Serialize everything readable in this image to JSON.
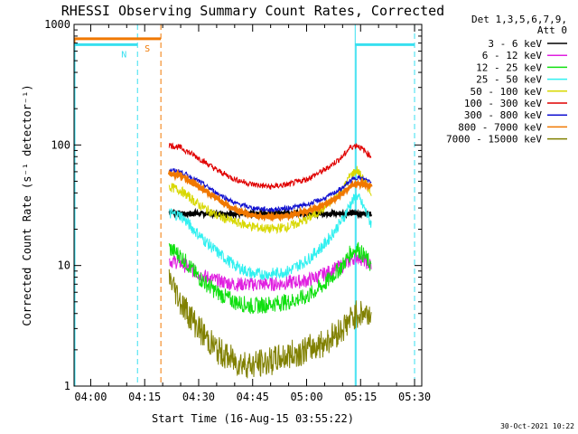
{
  "chart_data": {
    "type": "line",
    "title": "RHESSI Observing Summary Count Rates, Corrected",
    "xlabel": "Start Time (16-Aug-15 03:55:22)",
    "ylabel": "Corrected Count Rate (s⁻¹ detector⁻¹)",
    "yscale": "log",
    "ylim": [
      1,
      1000
    ],
    "xlim_minutes_after_0400": [
      -4.63,
      92
    ],
    "x_ticks": [
      {
        "label": "04:00",
        "t": 0
      },
      {
        "label": "04:15",
        "t": 15
      },
      {
        "label": "04:30",
        "t": 30
      },
      {
        "label": "04:45",
        "t": 45
      },
      {
        "label": "05:00",
        "t": 60
      },
      {
        "label": "05:15",
        "t": 75
      },
      {
        "label": "05:30",
        "t": 90
      }
    ],
    "y_ticks": [
      {
        "label": "1",
        "v": 1
      },
      {
        "label": "10",
        "v": 10
      },
      {
        "label": "100",
        "v": 100
      },
      {
        "label": "1000",
        "v": 1000
      }
    ],
    "legend": {
      "header_line1": "Det 1,3,5,6,7,9,",
      "header_line2": "Att 0",
      "position": "right"
    },
    "markers": [
      {
        "name": "SAA",
        "label": "S",
        "color": "#f07800",
        "t_start": -4.63,
        "t_end": 19.5,
        "level": 760
      },
      {
        "name": "Night",
        "label": "N",
        "color": "#38e0f0",
        "t_start": -4.63,
        "t_end": 13,
        "level": 680
      },
      {
        "name": "Night",
        "label": "",
        "color": "#38e0f0",
        "t_start": 73.5,
        "t_end": 90,
        "level": 680
      }
    ],
    "marker_boundaries": [
      {
        "t": 13,
        "color": "#38e0f0",
        "style": "dashed"
      },
      {
        "t": 19.5,
        "color": "#f07800",
        "style": "dashed"
      },
      {
        "t": 73.5,
        "color": "#38e0f0",
        "style": "solid"
      },
      {
        "t": 90,
        "color": "#38e0f0",
        "style": "dashed"
      }
    ],
    "x_sample_minutes": [
      21.8,
      25,
      30,
      35,
      40,
      45,
      50,
      55,
      60,
      65,
      70,
      72,
      74,
      76,
      78
    ],
    "series": [
      {
        "name": "3 - 6 keV",
        "color": "#000000",
        "values": [
          28,
          27,
          27,
          27,
          27,
          27,
          27,
          27,
          27,
          27,
          27,
          27,
          27,
          27,
          27
        ]
      },
      {
        "name": "6 - 12 keV",
        "color": "#e020e0",
        "values": [
          11,
          10.5,
          8.5,
          7.5,
          7,
          7,
          7,
          7.2,
          7.5,
          8.5,
          10,
          11,
          12,
          11,
          10
        ]
      },
      {
        "name": "12 - 25 keV",
        "color": "#10e010",
        "values": [
          14,
          12,
          8,
          6,
          5,
          4.6,
          4.8,
          5,
          5.5,
          7,
          10,
          12.5,
          14,
          12,
          10
        ]
      },
      {
        "name": "25 - 50 keV",
        "color": "#30f0f0",
        "values": [
          27,
          26,
          18,
          13,
          10,
          8.5,
          8.5,
          9,
          11,
          15,
          24,
          32,
          38,
          30,
          22
        ]
      },
      {
        "name": "50 - 100 keV",
        "color": "#d8d800",
        "values": [
          45,
          42,
          32,
          26,
          23,
          21,
          20,
          21,
          24,
          30,
          42,
          55,
          62,
          50,
          40
        ]
      },
      {
        "name": "100 - 300 keV",
        "color": "#e00000",
        "values": [
          100,
          95,
          78,
          62,
          52,
          47,
          45,
          47,
          52,
          62,
          80,
          95,
          100,
          90,
          80
        ]
      },
      {
        "name": "300 - 800 keV",
        "color": "#1010d0",
        "values": [
          62,
          60,
          50,
          40,
          33,
          30,
          29,
          30,
          32,
          36,
          44,
          50,
          54,
          52,
          50
        ]
      },
      {
        "name": "800 - 7000 keV",
        "color": "#f07800",
        "values": [
          58,
          56,
          45,
          36,
          29,
          26,
          25,
          26,
          28,
          32,
          40,
          45,
          48,
          47,
          45
        ]
      },
      {
        "name": "7000 - 15000 keV",
        "color": "#808000",
        "values": [
          8,
          5,
          3,
          2,
          1.6,
          1.5,
          1.6,
          1.8,
          2,
          2.3,
          3,
          3.5,
          4,
          4,
          4
        ]
      }
    ]
  },
  "timestamp": "30-Oct-2021 10:22"
}
